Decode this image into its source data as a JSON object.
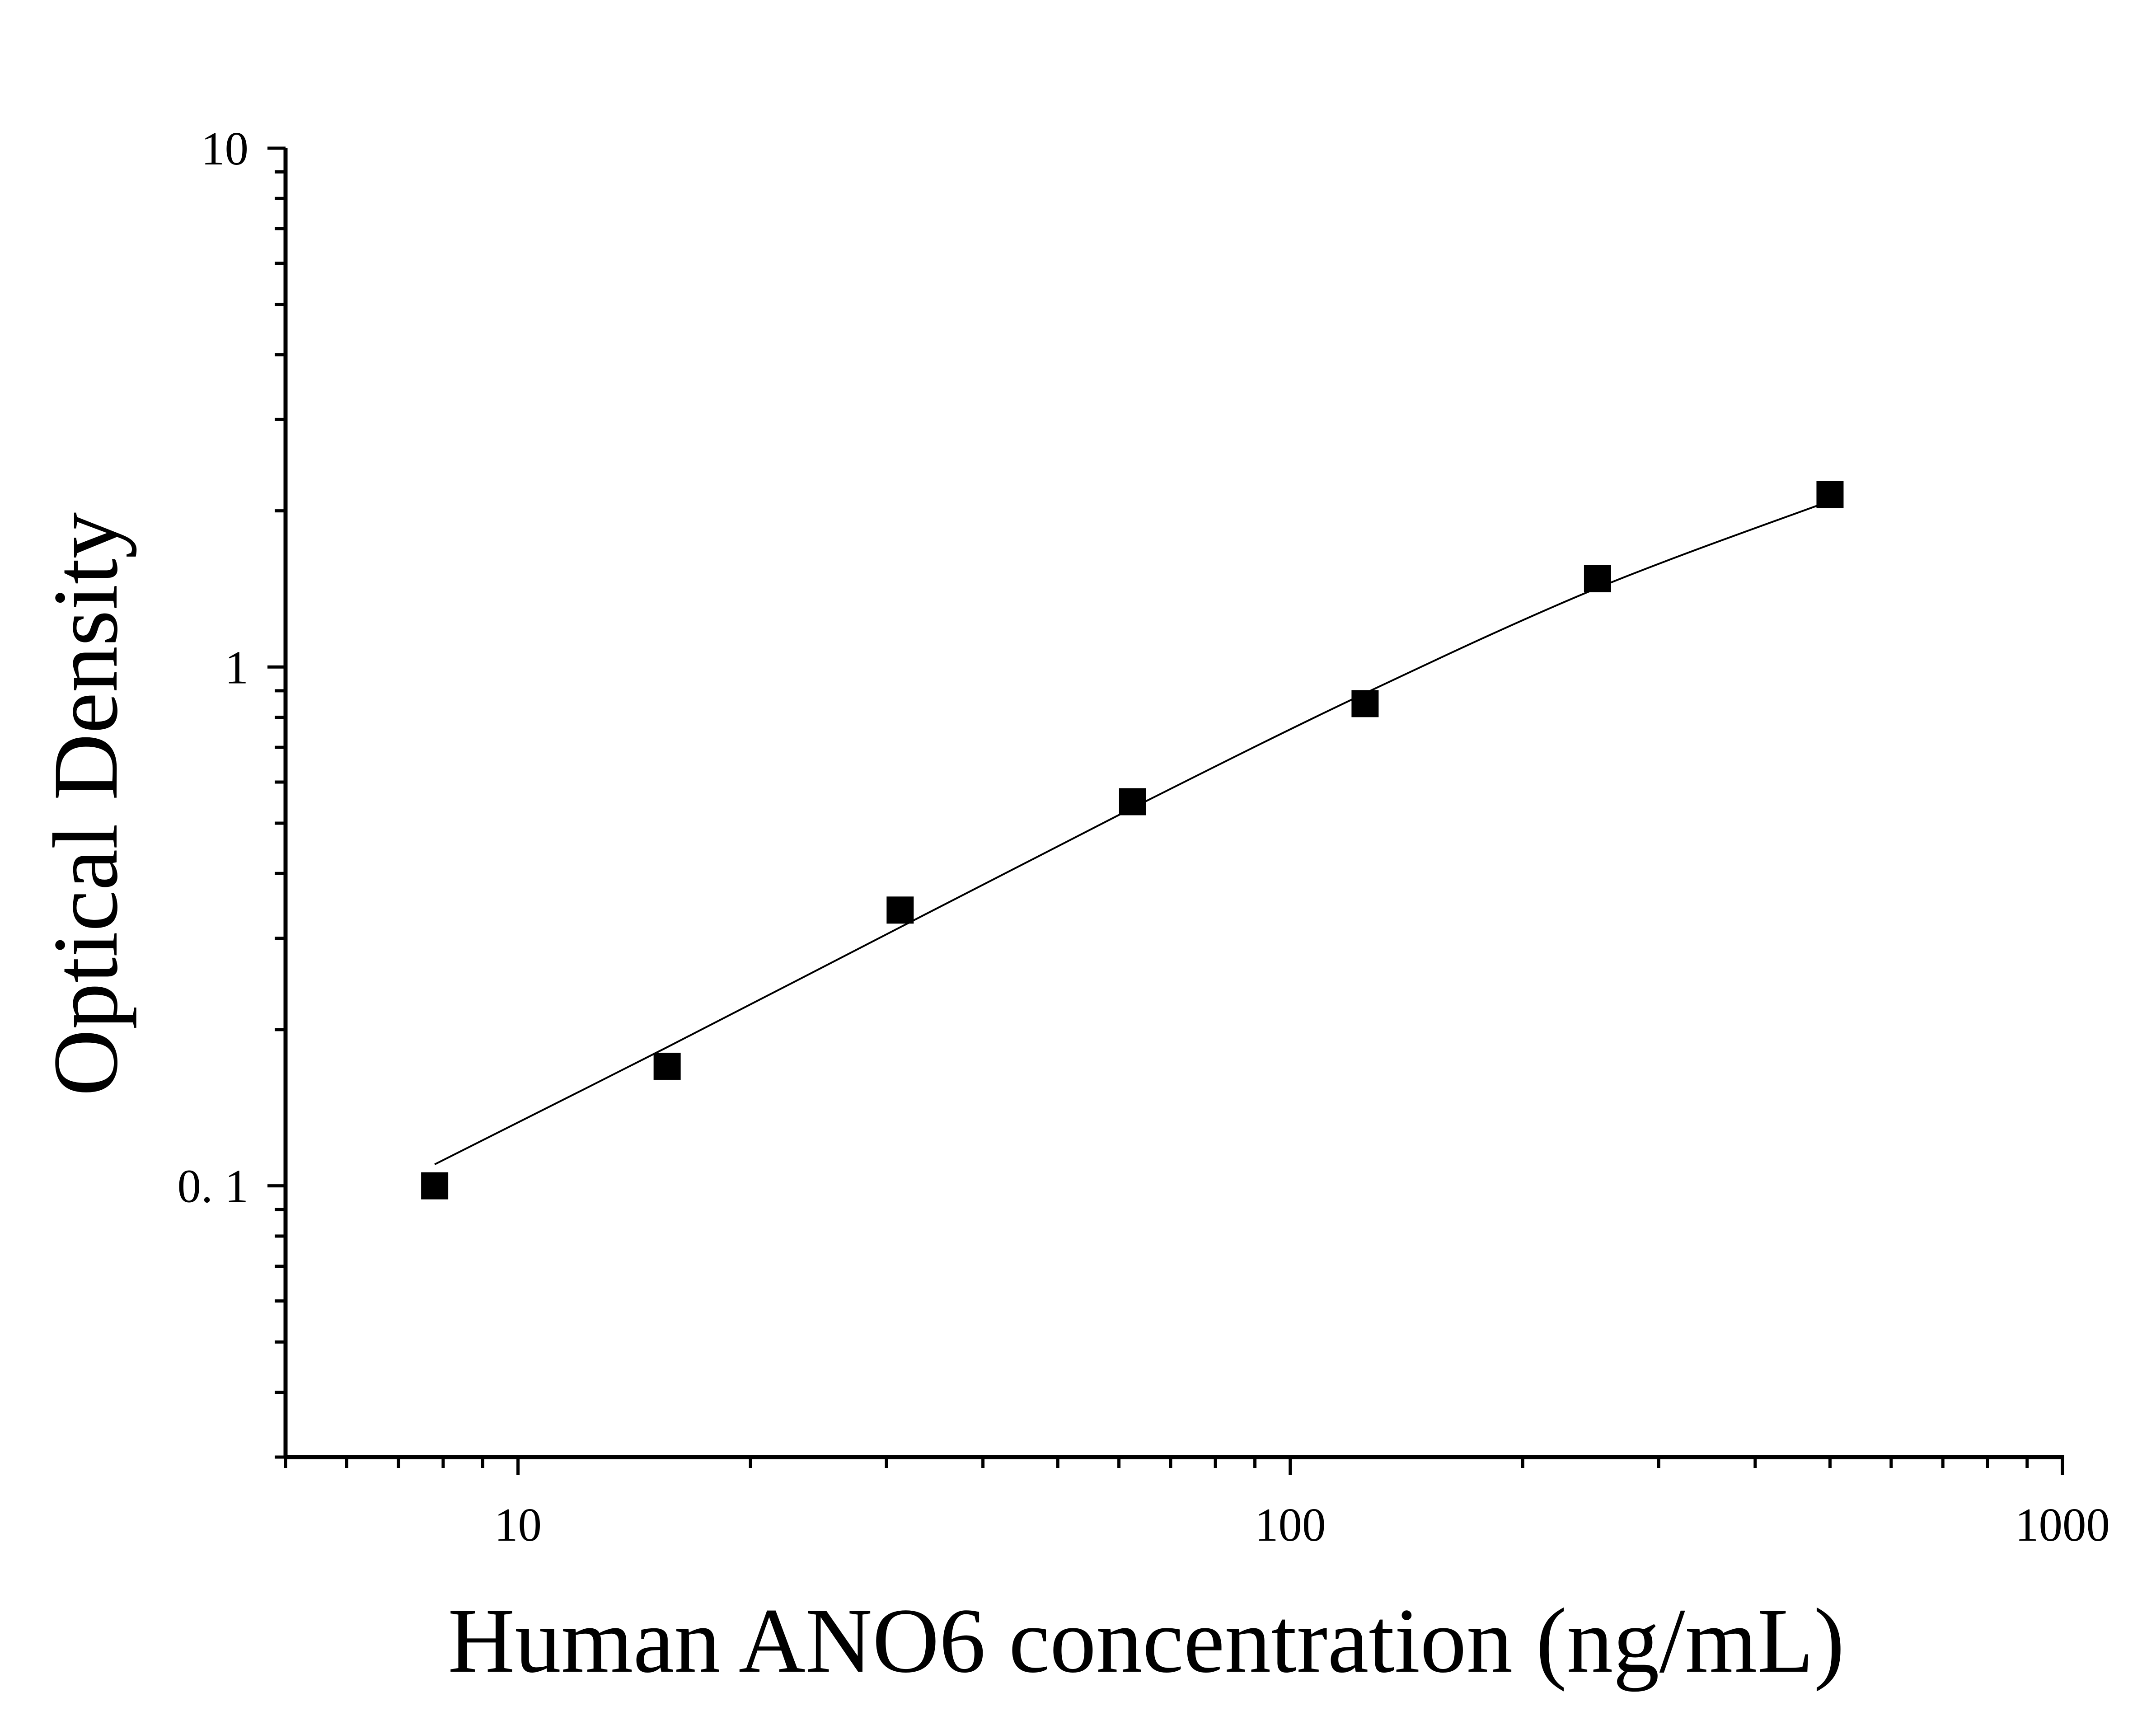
{
  "chart_data": {
    "type": "scatter",
    "xlabel": "Human ANO6 concentration (ng/mL)",
    "ylabel": "Optical Density",
    "x_scale": "log",
    "y_scale": "log",
    "xlim": [
      5,
      1000
    ],
    "ylim": [
      0.03,
      10
    ],
    "x_ticks": [
      {
        "value": 10,
        "label": "10"
      },
      {
        "value": 100,
        "label": "100"
      },
      {
        "value": 1000,
        "label": "1000"
      }
    ],
    "y_ticks": [
      {
        "value": 0.1,
        "label": "0. 1"
      },
      {
        "value": 1,
        "label": "1"
      },
      {
        "value": 10,
        "label": "10"
      }
    ],
    "grid": false,
    "series": [
      {
        "marker": "square",
        "x": [
          7.8,
          15.6,
          31.25,
          62.5,
          125,
          250,
          500
        ],
        "y": [
          0.1,
          0.17,
          0.34,
          0.55,
          0.85,
          1.48,
          2.15
        ]
      }
    ],
    "fit_curve": {
      "x": [
        7.8,
        15.6,
        31.25,
        62.5,
        125,
        250,
        500
      ],
      "y": [
        0.11,
        0.185,
        0.315,
        0.535,
        0.89,
        1.42,
        2.09
      ]
    },
    "colors": {
      "marker": "#000000",
      "line": "#000000",
      "axis": "#000000"
    }
  }
}
